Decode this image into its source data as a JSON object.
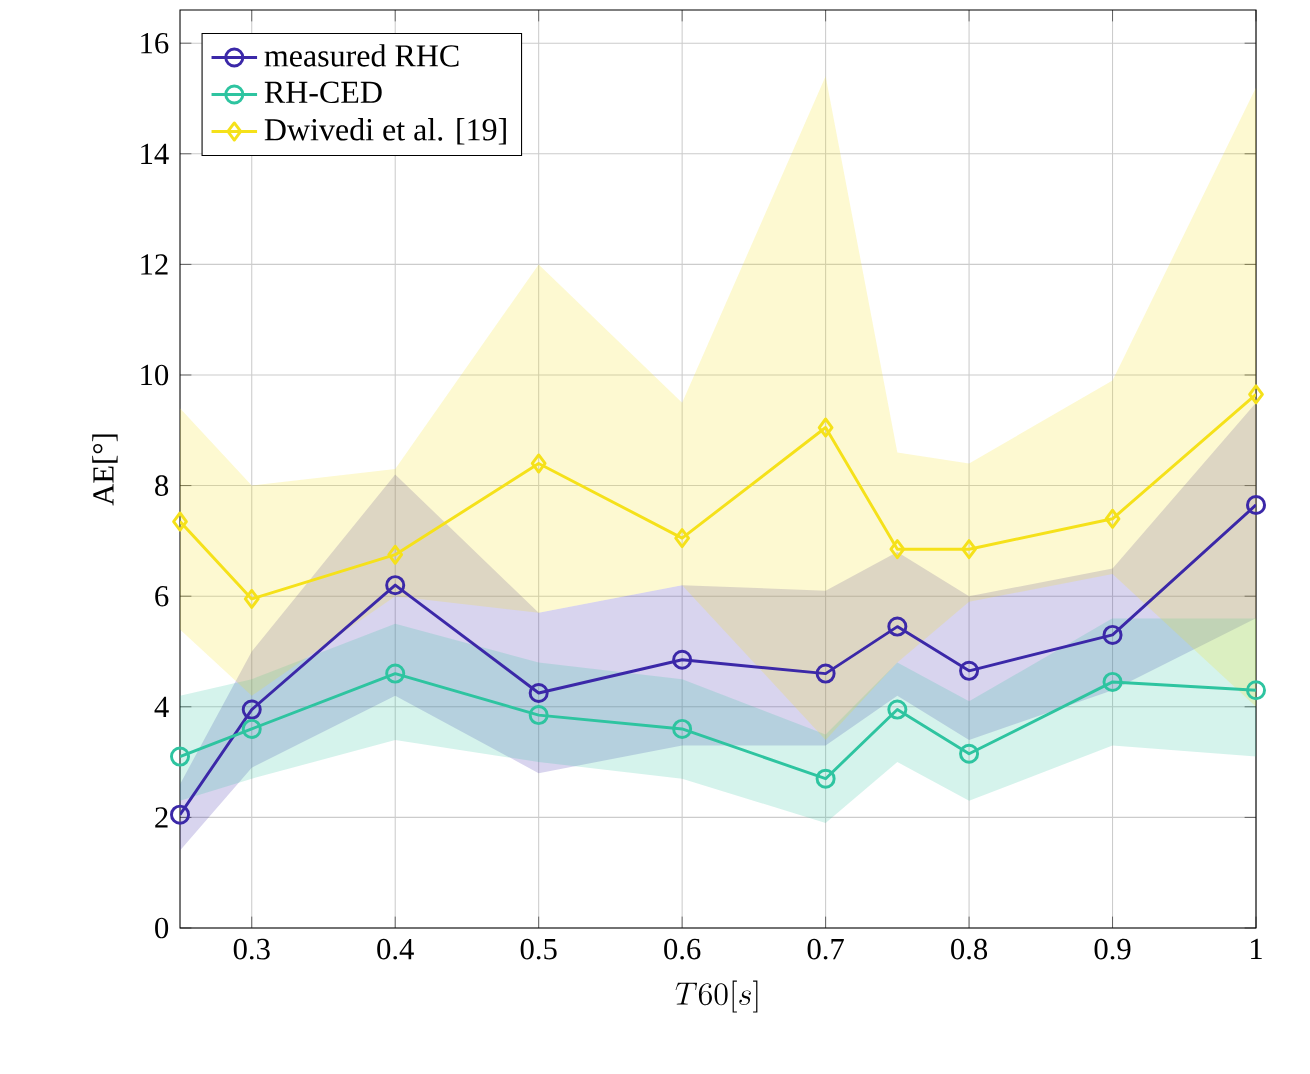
{
  "chart_data": {
    "type": "line",
    "xlabel": "T60[s]",
    "ylabel": "AE[°]",
    "x": [
      0.25,
      0.3,
      0.4,
      0.5,
      0.6,
      0.7,
      0.75,
      0.8,
      0.9,
      1
    ],
    "series": [
      {
        "name": "measured RHC",
        "color": "#3b28a8",
        "marker": "circle",
        "values": [
          2.05,
          3.95,
          6.2,
          4.25,
          4.85,
          4.6,
          5.45,
          4.65,
          5.3,
          7.65
        ],
        "lower": [
          1.4,
          2.9,
          4.2,
          2.8,
          3.3,
          3.3,
          4.2,
          3.4,
          4.3,
          5.6
        ],
        "upper": [
          2.6,
          5.0,
          8.2,
          5.7,
          6.2,
          6.1,
          6.8,
          6.0,
          6.5,
          9.5
        ]
      },
      {
        "name": "RH-CED",
        "color": "#2ec4a0",
        "marker": "circle",
        "values": [
          3.1,
          3.6,
          4.6,
          3.85,
          3.6,
          2.7,
          3.95,
          3.15,
          4.45,
          4.3
        ],
        "lower": [
          2.3,
          2.7,
          3.4,
          3.0,
          2.7,
          1.9,
          3.0,
          2.3,
          3.3,
          3.1
        ],
        "upper": [
          4.2,
          4.5,
          5.5,
          4.8,
          4.5,
          3.5,
          4.8,
          4.1,
          5.6,
          5.6
        ]
      },
      {
        "name": "Dwivedi et al. [19]",
        "color": "#f5e11a",
        "marker": "diamond",
        "values": [
          7.35,
          5.95,
          6.75,
          8.4,
          7.05,
          9.05,
          6.85,
          6.85,
          7.4,
          9.65
        ],
        "lower": [
          5.4,
          4.2,
          6.0,
          5.7,
          6.2,
          3.4,
          4.8,
          5.9,
          6.4,
          4.0
        ],
        "upper": [
          9.4,
          8.0,
          8.3,
          12.0,
          9.5,
          15.4,
          8.6,
          8.4,
          9.9,
          15.2
        ]
      }
    ],
    "xlim": [
      0.25,
      1
    ],
    "ylim": [
      0,
      16.6
    ],
    "xticks": [
      0.3,
      0.4,
      0.5,
      0.6,
      0.7,
      0.8,
      0.9,
      1
    ],
    "yticks": [
      0,
      2,
      4,
      6,
      8,
      10,
      12,
      14,
      16
    ],
    "grid": true,
    "legend": "top left",
    "line_style": "solid"
  }
}
